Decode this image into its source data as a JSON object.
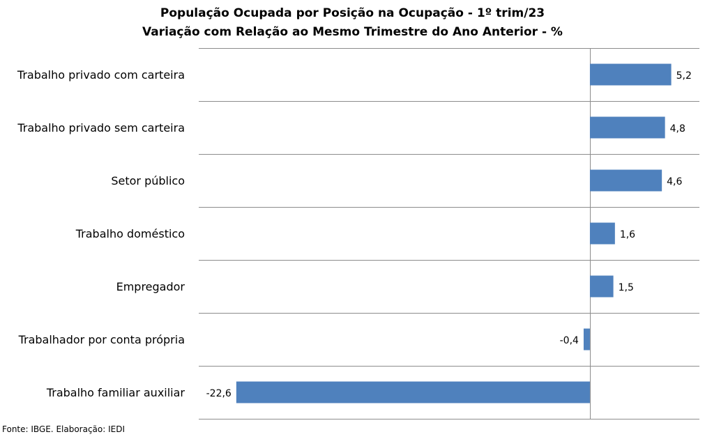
{
  "chart_data": {
    "type": "bar",
    "orientation": "horizontal",
    "title": "População Ocupada por Posição na Ocupação - 1º trim/23",
    "subtitle": "Variação com Relação ao Mesmo Trimestre do Ano Anterior - %",
    "categories": [
      "Trabalho privado com carteira",
      "Trabalho privado sem carteira",
      "Setor público",
      "Trabalho doméstico",
      "Empregador",
      "Trabalhador por conta própria",
      "Trabalho familiar auxiliar"
    ],
    "values": [
      5.2,
      4.8,
      4.6,
      1.6,
      1.5,
      -0.4,
      -22.6
    ],
    "value_labels": [
      "5,2",
      "4,8",
      "4,6",
      "1,6",
      "1,5",
      "-0,4",
      "-22,6"
    ],
    "xlim": [
      -25,
      7
    ],
    "grid": "horizontal separators",
    "legend": "none",
    "bar_color": "#4F81BD"
  },
  "source": "Fonte: IBGE. Elaboração: IEDI"
}
